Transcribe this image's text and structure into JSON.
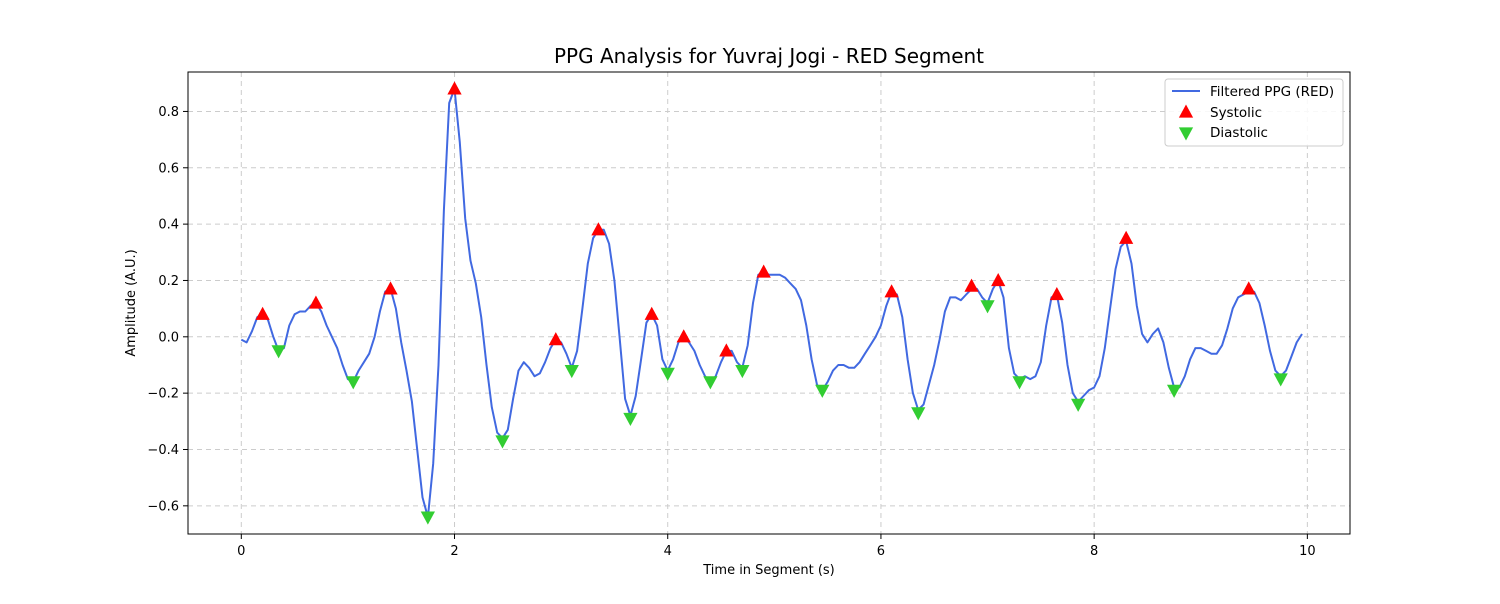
{
  "chart_data": {
    "type": "line",
    "title": "PPG Analysis for Yuvraj Jogi - RED Segment",
    "xlabel": "Time in Segment (s)",
    "ylabel": "Amplitude (A.U.)",
    "xlim": [
      -0.5,
      10.4
    ],
    "ylim": [
      -0.7,
      0.94
    ],
    "x_ticks": [
      0,
      2,
      4,
      6,
      8,
      10
    ],
    "y_ticks": [
      -0.6,
      -0.4,
      -0.2,
      0.0,
      0.2,
      0.4,
      0.6,
      0.8
    ],
    "x_tick_labels": [
      "0",
      "2",
      "4",
      "6",
      "8",
      "10"
    ],
    "y_tick_labels": [
      "−0.6",
      "−0.4",
      "−0.2",
      "0.0",
      "0.2",
      "0.4",
      "0.6",
      "0.8"
    ],
    "grid": true,
    "legend_position": "top-right",
    "series": [
      {
        "name": "Filtered PPG (RED)",
        "color": "#4169e1",
        "points": [
          [
            0.0,
            -0.01
          ],
          [
            0.05,
            -0.02
          ],
          [
            0.1,
            0.02
          ],
          [
            0.15,
            0.07
          ],
          [
            0.2,
            0.08
          ],
          [
            0.25,
            0.06
          ],
          [
            0.3,
            0.0
          ],
          [
            0.35,
            -0.05
          ],
          [
            0.4,
            -0.04
          ],
          [
            0.45,
            0.04
          ],
          [
            0.5,
            0.08
          ],
          [
            0.55,
            0.09
          ],
          [
            0.6,
            0.09
          ],
          [
            0.65,
            0.11
          ],
          [
            0.7,
            0.12
          ],
          [
            0.75,
            0.09
          ],
          [
            0.8,
            0.04
          ],
          [
            0.85,
            0.0
          ],
          [
            0.9,
            -0.04
          ],
          [
            0.95,
            -0.1
          ],
          [
            1.0,
            -0.15
          ],
          [
            1.05,
            -0.16
          ],
          [
            1.1,
            -0.12
          ],
          [
            1.15,
            -0.09
          ],
          [
            1.2,
            -0.06
          ],
          [
            1.25,
            0.0
          ],
          [
            1.3,
            0.09
          ],
          [
            1.35,
            0.16
          ],
          [
            1.4,
            0.17
          ],
          [
            1.45,
            0.1
          ],
          [
            1.5,
            -0.02
          ],
          [
            1.55,
            -0.12
          ],
          [
            1.6,
            -0.23
          ],
          [
            1.65,
            -0.4
          ],
          [
            1.7,
            -0.57
          ],
          [
            1.75,
            -0.64
          ],
          [
            1.8,
            -0.45
          ],
          [
            1.85,
            -0.1
          ],
          [
            1.9,
            0.45
          ],
          [
            1.95,
            0.83
          ],
          [
            2.0,
            0.88
          ],
          [
            2.05,
            0.69
          ],
          [
            2.1,
            0.42
          ],
          [
            2.15,
            0.27
          ],
          [
            2.2,
            0.19
          ],
          [
            2.25,
            0.07
          ],
          [
            2.3,
            -0.1
          ],
          [
            2.35,
            -0.25
          ],
          [
            2.4,
            -0.34
          ],
          [
            2.45,
            -0.36
          ],
          [
            2.5,
            -0.33
          ],
          [
            2.55,
            -0.22
          ],
          [
            2.6,
            -0.12
          ],
          [
            2.65,
            -0.09
          ],
          [
            2.7,
            -0.11
          ],
          [
            2.75,
            -0.14
          ],
          [
            2.8,
            -0.13
          ],
          [
            2.85,
            -0.09
          ],
          [
            2.9,
            -0.04
          ],
          [
            2.95,
            -0.01
          ],
          [
            3.0,
            -0.02
          ],
          [
            3.05,
            -0.06
          ],
          [
            3.1,
            -0.11
          ],
          [
            3.15,
            -0.05
          ],
          [
            3.2,
            0.1
          ],
          [
            3.25,
            0.26
          ],
          [
            3.3,
            0.35
          ],
          [
            3.35,
            0.38
          ],
          [
            3.4,
            0.38
          ],
          [
            3.45,
            0.33
          ],
          [
            3.5,
            0.2
          ],
          [
            3.55,
            -0.01
          ],
          [
            3.6,
            -0.22
          ],
          [
            3.65,
            -0.28
          ],
          [
            3.7,
            -0.21
          ],
          [
            3.75,
            -0.08
          ],
          [
            3.8,
            0.05
          ],
          [
            3.85,
            0.08
          ],
          [
            3.9,
            0.04
          ],
          [
            3.95,
            -0.08
          ],
          [
            4.0,
            -0.12
          ],
          [
            4.05,
            -0.08
          ],
          [
            4.1,
            -0.02
          ],
          [
            4.15,
            0.0
          ],
          [
            4.2,
            -0.02
          ],
          [
            4.25,
            -0.05
          ],
          [
            4.3,
            -0.1
          ],
          [
            4.35,
            -0.14
          ],
          [
            4.4,
            -0.16
          ],
          [
            4.45,
            -0.14
          ],
          [
            4.5,
            -0.09
          ],
          [
            4.55,
            -0.05
          ],
          [
            4.6,
            -0.05
          ],
          [
            4.65,
            -0.09
          ],
          [
            4.7,
            -0.11
          ],
          [
            4.75,
            -0.03
          ],
          [
            4.8,
            0.12
          ],
          [
            4.85,
            0.22
          ],
          [
            4.9,
            0.23
          ],
          [
            4.95,
            0.22
          ],
          [
            5.0,
            0.22
          ],
          [
            5.05,
            0.22
          ],
          [
            5.1,
            0.21
          ],
          [
            5.15,
            0.19
          ],
          [
            5.2,
            0.17
          ],
          [
            5.25,
            0.13
          ],
          [
            5.3,
            0.04
          ],
          [
            5.35,
            -0.08
          ],
          [
            5.4,
            -0.17
          ],
          [
            5.45,
            -0.19
          ],
          [
            5.5,
            -0.16
          ],
          [
            5.55,
            -0.12
          ],
          [
            5.6,
            -0.1
          ],
          [
            5.65,
            -0.1
          ],
          [
            5.7,
            -0.11
          ],
          [
            5.75,
            -0.11
          ],
          [
            5.8,
            -0.09
          ],
          [
            5.85,
            -0.06
          ],
          [
            5.9,
            -0.03
          ],
          [
            5.95,
            0.0
          ],
          [
            6.0,
            0.04
          ],
          [
            6.05,
            0.11
          ],
          [
            6.1,
            0.16
          ],
          [
            6.15,
            0.15
          ],
          [
            6.2,
            0.07
          ],
          [
            6.25,
            -0.08
          ],
          [
            6.3,
            -0.2
          ],
          [
            6.35,
            -0.26
          ],
          [
            6.4,
            -0.24
          ],
          [
            6.45,
            -0.17
          ],
          [
            6.5,
            -0.1
          ],
          [
            6.55,
            -0.01
          ],
          [
            6.6,
            0.09
          ],
          [
            6.65,
            0.14
          ],
          [
            6.7,
            0.14
          ],
          [
            6.75,
            0.13
          ],
          [
            6.8,
            0.15
          ],
          [
            6.85,
            0.17
          ],
          [
            6.9,
            0.17
          ],
          [
            6.95,
            0.14
          ],
          [
            7.0,
            0.12
          ],
          [
            7.05,
            0.17
          ],
          [
            7.1,
            0.2
          ],
          [
            7.15,
            0.14
          ],
          [
            7.2,
            -0.04
          ],
          [
            7.25,
            -0.13
          ],
          [
            7.3,
            -0.15
          ],
          [
            7.35,
            -0.14
          ],
          [
            7.4,
            -0.15
          ],
          [
            7.45,
            -0.14
          ],
          [
            7.5,
            -0.09
          ],
          [
            7.55,
            0.04
          ],
          [
            7.6,
            0.14
          ],
          [
            7.65,
            0.15
          ],
          [
            7.7,
            0.05
          ],
          [
            7.75,
            -0.1
          ],
          [
            7.8,
            -0.2
          ],
          [
            7.85,
            -0.23
          ],
          [
            7.9,
            -0.21
          ],
          [
            7.95,
            -0.19
          ],
          [
            8.0,
            -0.18
          ],
          [
            8.05,
            -0.14
          ],
          [
            8.1,
            -0.04
          ],
          [
            8.15,
            0.1
          ],
          [
            8.2,
            0.24
          ],
          [
            8.25,
            0.32
          ],
          [
            8.3,
            0.34
          ],
          [
            8.35,
            0.26
          ],
          [
            8.4,
            0.11
          ],
          [
            8.45,
            0.01
          ],
          [
            8.5,
            -0.02
          ],
          [
            8.55,
            0.01
          ],
          [
            8.6,
            0.03
          ],
          [
            8.65,
            -0.02
          ],
          [
            8.7,
            -0.11
          ],
          [
            8.75,
            -0.18
          ],
          [
            8.8,
            -0.18
          ],
          [
            8.85,
            -0.14
          ],
          [
            8.9,
            -0.08
          ],
          [
            8.95,
            -0.04
          ],
          [
            9.0,
            -0.04
          ],
          [
            9.05,
            -0.05
          ],
          [
            9.1,
            -0.06
          ],
          [
            9.15,
            -0.06
          ],
          [
            9.2,
            -0.03
          ],
          [
            9.25,
            0.03
          ],
          [
            9.3,
            0.1
          ],
          [
            9.35,
            0.14
          ],
          [
            9.4,
            0.15
          ],
          [
            9.45,
            0.16
          ],
          [
            9.5,
            0.16
          ],
          [
            9.55,
            0.12
          ],
          [
            9.6,
            0.04
          ],
          [
            9.65,
            -0.05
          ],
          [
            9.7,
            -0.12
          ],
          [
            9.75,
            -0.14
          ],
          [
            9.8,
            -0.12
          ],
          [
            9.85,
            -0.07
          ],
          [
            9.9,
            -0.02
          ],
          [
            9.95,
            0.01
          ]
        ]
      },
      {
        "name": "Systolic",
        "color": "#ff0000",
        "marker": "triangle-up",
        "points": [
          [
            0.2,
            0.08
          ],
          [
            0.7,
            0.12
          ],
          [
            1.4,
            0.17
          ],
          [
            2.0,
            0.88
          ],
          [
            2.95,
            -0.01
          ],
          [
            3.35,
            0.38
          ],
          [
            3.85,
            0.08
          ],
          [
            4.15,
            0.0
          ],
          [
            4.55,
            -0.05
          ],
          [
            4.9,
            0.23
          ],
          [
            6.1,
            0.16
          ],
          [
            6.85,
            0.18
          ],
          [
            7.1,
            0.2
          ],
          [
            7.65,
            0.15
          ],
          [
            8.3,
            0.35
          ],
          [
            9.45,
            0.17
          ]
        ]
      },
      {
        "name": "Diastolic",
        "color": "#32cd32",
        "marker": "triangle-down",
        "points": [
          [
            0.35,
            -0.05
          ],
          [
            1.05,
            -0.16
          ],
          [
            1.75,
            -0.64
          ],
          [
            2.45,
            -0.37
          ],
          [
            3.1,
            -0.12
          ],
          [
            3.65,
            -0.29
          ],
          [
            4.0,
            -0.13
          ],
          [
            4.4,
            -0.16
          ],
          [
            4.7,
            -0.12
          ],
          [
            5.45,
            -0.19
          ],
          [
            6.35,
            -0.27
          ],
          [
            7.0,
            0.11
          ],
          [
            7.3,
            -0.16
          ],
          [
            7.85,
            -0.24
          ],
          [
            8.75,
            -0.19
          ],
          [
            9.75,
            -0.15
          ]
        ]
      }
    ]
  }
}
